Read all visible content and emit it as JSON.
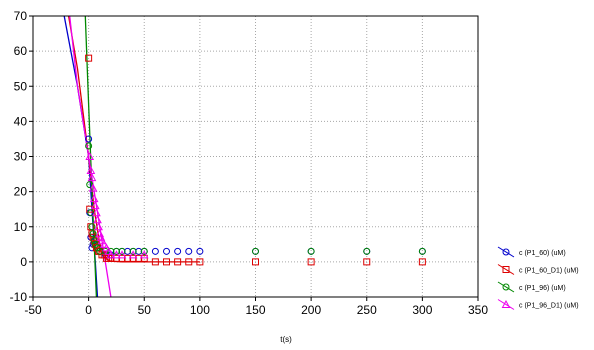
{
  "chart_data": {
    "type": "scatter",
    "title": "",
    "xlabel": "t(s)",
    "ylabel": "",
    "xlim": [
      -50,
      350
    ],
    "ylim": [
      -10,
      70
    ],
    "x_ticks": [
      "-50",
      "0",
      "50",
      "100",
      "150",
      "200",
      "250",
      "300",
      "350"
    ],
    "y_ticks": [
      "-10",
      "0",
      "10",
      "20",
      "30",
      "40",
      "50",
      "60",
      "70"
    ],
    "grid": true,
    "legend_position": "right",
    "series": [
      {
        "name": "c (P1_60) (uM)",
        "color": "#0000cc",
        "marker": "circle",
        "points": [
          [
            0,
            35
          ],
          [
            1,
            14
          ],
          [
            2,
            7
          ],
          [
            3,
            4
          ],
          [
            4,
            5
          ],
          [
            5,
            6
          ],
          [
            8,
            4
          ],
          [
            10,
            3
          ],
          [
            15,
            2
          ],
          [
            20,
            2
          ],
          [
            25,
            3
          ],
          [
            30,
            3
          ],
          [
            35,
            3
          ],
          [
            40,
            3
          ],
          [
            45,
            3
          ],
          [
            50,
            3
          ],
          [
            60,
            3
          ],
          [
            70,
            3
          ],
          [
            80,
            3
          ],
          [
            90,
            3
          ],
          [
            100,
            3
          ],
          [
            150,
            3
          ],
          [
            200,
            3
          ],
          [
            250,
            3
          ],
          [
            300,
            3
          ]
        ],
        "fit_line": [
          [
            -22,
            70
          ],
          [
            -10,
            50
          ],
          [
            0,
            30
          ],
          [
            4,
            10
          ],
          [
            6,
            0
          ],
          [
            8,
            -10
          ]
        ]
      },
      {
        "name": "c (P1_60_D1) (uM)",
        "color": "#dd0000",
        "marker": "square",
        "points": [
          [
            0,
            58
          ],
          [
            1,
            15
          ],
          [
            2,
            10
          ],
          [
            3,
            8
          ],
          [
            4,
            7
          ],
          [
            5,
            6
          ],
          [
            6,
            5
          ],
          [
            7,
            4
          ],
          [
            8,
            4
          ],
          [
            9,
            3
          ],
          [
            10,
            3
          ],
          [
            12,
            2
          ],
          [
            14,
            2
          ],
          [
            16,
            1
          ],
          [
            18,
            1
          ],
          [
            20,
            1
          ],
          [
            25,
            1
          ],
          [
            30,
            1
          ],
          [
            35,
            1
          ],
          [
            40,
            1
          ],
          [
            45,
            1
          ],
          [
            50,
            1
          ],
          [
            60,
            0
          ],
          [
            70,
            0
          ],
          [
            80,
            0
          ],
          [
            90,
            0
          ],
          [
            100,
            0
          ],
          [
            150,
            0
          ],
          [
            200,
            0
          ],
          [
            250,
            0
          ],
          [
            300,
            0
          ]
        ],
        "fit_line": [
          [
            -18,
            70
          ],
          [
            -10,
            55
          ],
          [
            0,
            30
          ],
          [
            5,
            15
          ],
          [
            10,
            5
          ],
          [
            15,
            1
          ],
          [
            20,
            0.2
          ],
          [
            30,
            0
          ],
          [
            60,
            0
          ],
          [
            100,
            0
          ]
        ]
      },
      {
        "name": "c (P1_96) (uM)",
        "color": "#008800",
        "marker": "circle",
        "points": [
          [
            0,
            33
          ],
          [
            1,
            22
          ],
          [
            2,
            14
          ],
          [
            3,
            10
          ],
          [
            4,
            8
          ],
          [
            5,
            6
          ],
          [
            6,
            5
          ],
          [
            8,
            4
          ],
          [
            10,
            3
          ],
          [
            15,
            3
          ],
          [
            20,
            3
          ],
          [
            25,
            3
          ],
          [
            30,
            3
          ],
          [
            40,
            3
          ],
          [
            50,
            3
          ],
          [
            150,
            3
          ],
          [
            200,
            3
          ],
          [
            250,
            3
          ],
          [
            300,
            3
          ]
        ],
        "fit_line": [
          [
            -3,
            70
          ],
          [
            0,
            45
          ],
          [
            3,
            20
          ],
          [
            5,
            5
          ],
          [
            7,
            -10
          ]
        ]
      },
      {
        "name": "c (P1_96_D1) (uM)",
        "color": "#ee00ee",
        "marker": "triangle",
        "points": [
          [
            1,
            30
          ],
          [
            2,
            26
          ],
          [
            3,
            24
          ],
          [
            4,
            21
          ],
          [
            5,
            18
          ],
          [
            6,
            16
          ],
          [
            7,
            14
          ],
          [
            8,
            12
          ],
          [
            9,
            10
          ],
          [
            10,
            8
          ],
          [
            11,
            7
          ],
          [
            12,
            6
          ],
          [
            14,
            5
          ],
          [
            16,
            4
          ],
          [
            18,
            3
          ],
          [
            20,
            2
          ],
          [
            25,
            2
          ],
          [
            30,
            2
          ],
          [
            40,
            2
          ],
          [
            50,
            2
          ]
        ],
        "fit_line": [
          [
            -17,
            70
          ],
          [
            -10,
            50
          ],
          [
            0,
            30
          ],
          [
            5,
            20
          ],
          [
            10,
            10
          ],
          [
            15,
            0
          ],
          [
            20,
            -10
          ]
        ]
      }
    ]
  }
}
